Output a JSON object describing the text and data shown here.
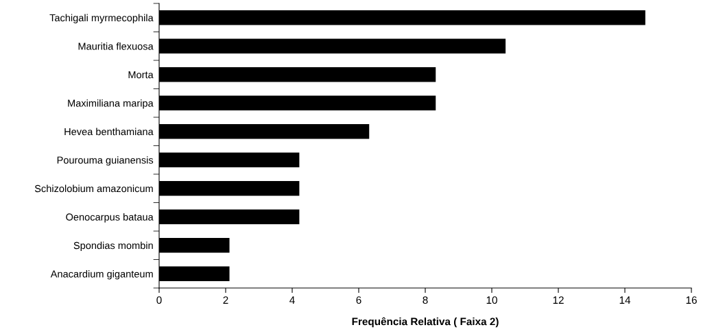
{
  "chart_data": {
    "type": "bar",
    "orientation": "horizontal",
    "xlabel": "Frequência Relativa ( Faixa 2)",
    "categories": [
      "Tachigali myrmecophila",
      "Mauritia flexuosa",
      "Morta",
      "Maximiliana maripa",
      "Hevea benthamiana",
      "Pourouma guianensis",
      "Schizolobium amazonicum",
      "Oenocarpus bataua",
      "Spondias mombin",
      "Anacardium giganteum"
    ],
    "values": [
      14.6,
      10.4,
      8.3,
      8.3,
      6.3,
      4.2,
      4.2,
      4.2,
      2.1,
      2.1
    ],
    "color": "#000000",
    "xlim": [
      0,
      16
    ],
    "xticks": [
      0,
      2,
      4,
      6,
      8,
      10,
      12,
      14,
      16
    ],
    "grid": false,
    "legend": false
  }
}
